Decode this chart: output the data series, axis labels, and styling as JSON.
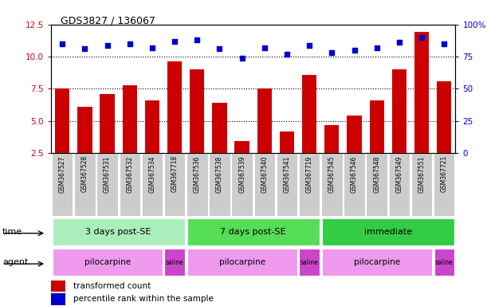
{
  "title": "GDS3827 / 136067",
  "samples": [
    "GSM367527",
    "GSM367528",
    "GSM367531",
    "GSM367532",
    "GSM367534",
    "GSM367718",
    "GSM367536",
    "GSM367538",
    "GSM367539",
    "GSM367540",
    "GSM367541",
    "GSM367719",
    "GSM367545",
    "GSM367546",
    "GSM367548",
    "GSM367549",
    "GSM367551",
    "GSM367721"
  ],
  "bar_values": [
    7.5,
    6.1,
    7.1,
    7.8,
    6.6,
    9.6,
    9.0,
    6.4,
    3.4,
    7.5,
    4.2,
    8.6,
    4.7,
    5.4,
    6.6,
    9.0,
    11.9,
    8.1
  ],
  "dot_values": [
    11.0,
    10.6,
    10.9,
    11.0,
    10.7,
    11.2,
    11.3,
    10.6,
    9.9,
    10.7,
    10.2,
    10.9,
    10.3,
    10.5,
    10.7,
    11.1,
    11.5,
    11.0
  ],
  "bar_color": "#cc0000",
  "dot_color": "#0000cc",
  "ylim_left": [
    2.5,
    12.5
  ],
  "yticks_left": [
    2.5,
    5.0,
    7.5,
    10.0,
    12.5
  ],
  "ylim_right": [
    0,
    100
  ],
  "yticks_right": [
    0,
    25,
    50,
    75,
    100
  ],
  "ytick_labels_right": [
    "0",
    "25",
    "50",
    "75",
    "100%"
  ],
  "hlines": [
    5.0,
    7.5,
    10.0
  ],
  "time_groups": [
    {
      "label": "3 days post-SE",
      "start": 0,
      "end": 6,
      "color": "#aaeebb"
    },
    {
      "label": "7 days post-SE",
      "start": 6,
      "end": 12,
      "color": "#55dd55"
    },
    {
      "label": "immediate",
      "start": 12,
      "end": 18,
      "color": "#33cc44"
    }
  ],
  "agent_groups": [
    {
      "label": "pilocarpine",
      "start": 0,
      "end": 5,
      "color": "#ee99ee"
    },
    {
      "label": "saline",
      "start": 5,
      "end": 6,
      "color": "#cc44cc"
    },
    {
      "label": "pilocarpine",
      "start": 6,
      "end": 11,
      "color": "#ee99ee"
    },
    {
      "label": "saline",
      "start": 11,
      "end": 12,
      "color": "#cc44cc"
    },
    {
      "label": "pilocarpine",
      "start": 12,
      "end": 17,
      "color": "#ee99ee"
    },
    {
      "label": "saline",
      "start": 17,
      "end": 18,
      "color": "#cc44cc"
    }
  ],
  "time_label": "time",
  "agent_label": "agent",
  "legend_bar": "transformed count",
  "legend_dot": "percentile rank within the sample",
  "tick_color_left": "#cc0000",
  "tick_color_right": "#0000cc",
  "sample_box_color": "#cccccc",
  "sample_text_color": "#000000"
}
